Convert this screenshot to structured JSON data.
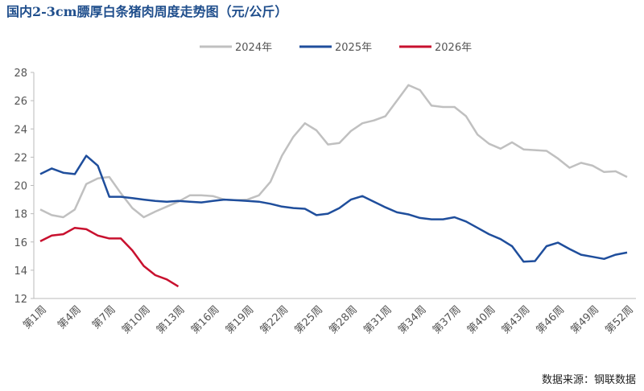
{
  "chart_data": {
    "type": "line",
    "title": "国内2-3cm膘厚白条猪肉周度走势图（元/公斤）",
    "source": "数据来源：钢联数据",
    "categories": [
      "第1周",
      null,
      null,
      "第4周",
      null,
      null,
      "第7周",
      null,
      null,
      "第10周",
      null,
      null,
      "第13周",
      null,
      null,
      "第16周",
      null,
      null,
      "第19周",
      null,
      null,
      "第22周",
      null,
      null,
      "第25周",
      null,
      null,
      "第28周",
      null,
      null,
      "第31周",
      null,
      null,
      "第34周",
      null,
      null,
      "第37周",
      null,
      null,
      "第40周",
      null,
      null,
      "第43周",
      null,
      null,
      "第46周",
      null,
      null,
      "第49周",
      null,
      null,
      "第52周"
    ],
    "series": [
      {
        "name": "2024年",
        "color": "#c0c0c0",
        "values": [
          18.3,
          17.9,
          17.75,
          18.3,
          20.1,
          20.5,
          20.6,
          19.45,
          18.4,
          17.75,
          18.15,
          18.5,
          18.85,
          19.3,
          19.3,
          19.25,
          19.0,
          18.95,
          19.0,
          19.3,
          20.25,
          22.1,
          23.45,
          24.4,
          23.9,
          22.9,
          23.0,
          23.85,
          24.4,
          24.6,
          24.9,
          26.0,
          27.1,
          26.75,
          25.65,
          25.55,
          25.55,
          24.9,
          23.6,
          22.95,
          22.6,
          23.05,
          22.55,
          22.5,
          22.45,
          21.9,
          21.25,
          21.6,
          21.4,
          20.95,
          21.0,
          20.6
        ]
      },
      {
        "name": "2025年",
        "color": "#1f4e9c",
        "values": [
          20.8,
          21.2,
          20.9,
          20.8,
          22.1,
          21.4,
          19.2,
          19.2,
          19.1,
          19.0,
          18.9,
          18.85,
          18.9,
          18.85,
          18.8,
          18.9,
          19.0,
          18.95,
          18.9,
          18.85,
          18.7,
          18.5,
          18.4,
          18.35,
          17.9,
          18.0,
          18.4,
          19.0,
          19.25,
          18.85,
          18.45,
          18.1,
          17.95,
          17.7,
          17.6,
          17.6,
          17.75,
          17.45,
          17.0,
          16.55,
          16.2,
          15.7,
          14.6,
          14.65,
          15.7,
          15.95,
          15.5,
          15.1,
          14.95,
          14.8,
          15.1,
          15.25
        ]
      },
      {
        "name": "2026年",
        "color": "#c8102e",
        "values": [
          16.05,
          16.45,
          16.55,
          17.0,
          16.9,
          16.45,
          16.25,
          16.25,
          15.4,
          14.3,
          13.65,
          13.35,
          12.85,
          null,
          null,
          null,
          null,
          null,
          null,
          null,
          null,
          null,
          null,
          null,
          null,
          null,
          null,
          null,
          null,
          null,
          null,
          null,
          null,
          null,
          null,
          null,
          null,
          null,
          null,
          null,
          null,
          null,
          null,
          null,
          null,
          null,
          null,
          null,
          null,
          null,
          null,
          null
        ]
      }
    ],
    "ylim": [
      12,
      28
    ],
    "yticks": [
      12,
      14,
      16,
      18,
      20,
      22,
      24,
      26,
      28
    ],
    "grid": false,
    "legend": "top"
  }
}
